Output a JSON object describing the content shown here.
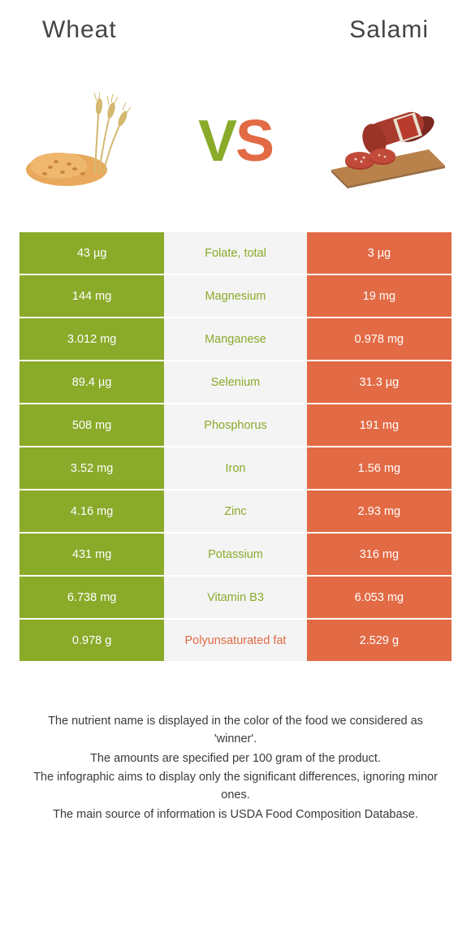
{
  "header": {
    "left": "Wheat",
    "right": "Salami"
  },
  "vs": {
    "v": "V",
    "s": "S"
  },
  "colors": {
    "left_bg": "#8aaa2a",
    "right_bg": "#e26a44",
    "mid_bg": "#f4f4f4",
    "mid_win_left": "#8aaa2a",
    "mid_win_right": "#e26a44",
    "text_white": "#ffffff",
    "wheat_grain": "#e8a95c",
    "wheat_stalk": "#d4b870",
    "salami_meat": "#a83b2e",
    "salami_skin": "#c98b6a",
    "salami_board": "#b8824a"
  },
  "table": {
    "rows": [
      {
        "left": "43 µg",
        "label": "Folate, total",
        "right": "3 µg",
        "winner": "left"
      },
      {
        "left": "144 mg",
        "label": "Magnesium",
        "right": "19 mg",
        "winner": "left"
      },
      {
        "left": "3.012 mg",
        "label": "Manganese",
        "right": "0.978 mg",
        "winner": "left"
      },
      {
        "left": "89.4 µg",
        "label": "Selenium",
        "right": "31.3 µg",
        "winner": "left"
      },
      {
        "left": "508 mg",
        "label": "Phosphorus",
        "right": "191 mg",
        "winner": "left"
      },
      {
        "left": "3.52 mg",
        "label": "Iron",
        "right": "1.56 mg",
        "winner": "left"
      },
      {
        "left": "4.16 mg",
        "label": "Zinc",
        "right": "2.93 mg",
        "winner": "left"
      },
      {
        "left": "431 mg",
        "label": "Potassium",
        "right": "316 mg",
        "winner": "left"
      },
      {
        "left": "6.738 mg",
        "label": "Vitamin B3",
        "right": "6.053 mg",
        "winner": "left"
      },
      {
        "left": "0.978 g",
        "label": "Polyunsaturated fat",
        "right": "2.529 g",
        "winner": "right"
      }
    ]
  },
  "notes": [
    "The nutrient name is displayed in the color of the food we considered as 'winner'.",
    "The amounts are specified per 100 gram of the product.",
    "The infographic aims to display only the significant differences, ignoring minor ones.",
    "The main source of information is USDA Food Composition Database."
  ]
}
